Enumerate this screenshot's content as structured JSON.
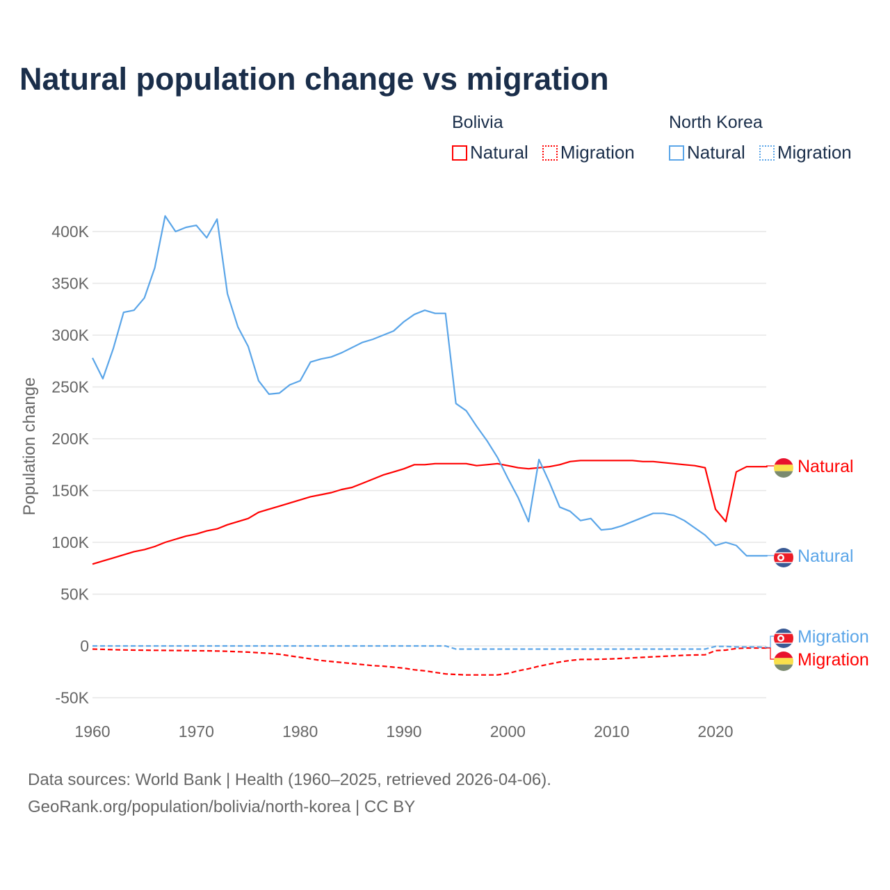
{
  "title": "Natural population change vs migration",
  "legend": {
    "groups": [
      {
        "name": "Bolivia",
        "color": "#ff0000",
        "items": [
          "Natural",
          "Migration"
        ]
      },
      {
        "name": "North Korea",
        "color": "#5aa5e8",
        "items": [
          "Natural",
          "Migration"
        ]
      }
    ]
  },
  "footer": {
    "line1": "Data sources: World Bank | Health (1960–2025, retrieved 2026-04-06).",
    "line2": "GeoRank.org/population/bolivia/north-korea | CC BY"
  },
  "chart_data": {
    "type": "line",
    "title": "Natural population change vs migration",
    "xlabel": "",
    "ylabel": "Population change",
    "xlim": [
      1960,
      2025
    ],
    "ylim": [
      -50000,
      400000
    ],
    "xticks": [
      "1960",
      "1970",
      "1980",
      "1990",
      "2000",
      "2010",
      "2020"
    ],
    "yticks": [
      "-50K",
      "0",
      "50K",
      "100K",
      "150K",
      "200K",
      "250K",
      "300K",
      "350K",
      "400K"
    ],
    "grid": true,
    "legend_position": "top-right",
    "x_start": 1960,
    "units": "thousands",
    "series": [
      {
        "name": "Bolivia Natural",
        "label": "Natural",
        "color": "#ff0000",
        "dash": false,
        "values": [
          79,
          82,
          85,
          88,
          91,
          93,
          96,
          100,
          103,
          106,
          108,
          111,
          113,
          117,
          120,
          123,
          129,
          132,
          135,
          138,
          141,
          144,
          146,
          148,
          151,
          153,
          157,
          161,
          165,
          168,
          171,
          175,
          175,
          176,
          176,
          176,
          176,
          174,
          175,
          176,
          174,
          172,
          171,
          172,
          173,
          175,
          178,
          179,
          179,
          179,
          179,
          179,
          179,
          178,
          178,
          177,
          176,
          175,
          174,
          172,
          132,
          120,
          168,
          173,
          173,
          173
        ]
      },
      {
        "name": "Bolivia Migration",
        "label": "Migration",
        "color": "#ff0000",
        "dash": true,
        "values": [
          -3,
          -3.3,
          -3.6,
          -3.8,
          -4,
          -4.1,
          -4.2,
          -4.3,
          -4.4,
          -4.5,
          -4.6,
          -4.7,
          -4.9,
          -5.2,
          -5.6,
          -6,
          -6.6,
          -7.2,
          -8,
          -9.5,
          -11,
          -12.5,
          -14,
          -15,
          -16,
          -17,
          -18,
          -19,
          -19.5,
          -20.5,
          -21.5,
          -23,
          -24,
          -25.5,
          -27,
          -27.5,
          -28,
          -28,
          -28,
          -28,
          -26.5,
          -24,
          -22,
          -19.5,
          -17.5,
          -15.5,
          -14,
          -13,
          -13,
          -12.8,
          -12.5,
          -12,
          -11.5,
          -11,
          -10.5,
          -10,
          -9.5,
          -9,
          -8.7,
          -8.5,
          -4.5,
          -4,
          -2.5,
          -2,
          -2,
          -2
        ]
      },
      {
        "name": "North Korea Natural",
        "label": "Natural",
        "color": "#5aa5e8",
        "dash": false,
        "values": [
          278,
          258,
          287,
          322,
          324,
          336,
          365,
          415,
          400,
          404,
          406,
          394,
          412,
          340,
          308,
          289,
          256,
          243,
          244,
          252,
          256,
          274,
          277,
          279,
          283,
          288,
          293,
          296,
          300,
          304,
          313,
          320,
          324,
          321,
          321,
          234,
          227,
          212,
          198,
          182,
          162,
          143,
          120,
          180,
          158,
          134,
          130,
          121,
          123,
          112,
          113,
          116,
          120,
          124,
          128,
          128,
          126,
          121,
          114,
          107,
          97,
          100,
          97,
          87,
          87,
          87
        ]
      },
      {
        "name": "North Korea Migration",
        "label": "Migration",
        "color": "#5aa5e8",
        "dash": true,
        "values": [
          0,
          0,
          0,
          0,
          0,
          0,
          0,
          0,
          0,
          0,
          0,
          0,
          0,
          0,
          0,
          0,
          0,
          0,
          0,
          0,
          0,
          0,
          0,
          0,
          0,
          0,
          0,
          0,
          0,
          0,
          0,
          0,
          0,
          0,
          0,
          -3,
          -3,
          -3,
          -3,
          -3,
          -3,
          -3,
          -3,
          -3,
          -3,
          -3,
          -3,
          -3,
          -3,
          -3,
          -3,
          -3,
          -3,
          -3,
          -3,
          -3,
          -3,
          -3,
          -3,
          -3,
          -0.5,
          -0.5,
          -1,
          -1,
          -1,
          -1.5
        ]
      }
    ]
  }
}
